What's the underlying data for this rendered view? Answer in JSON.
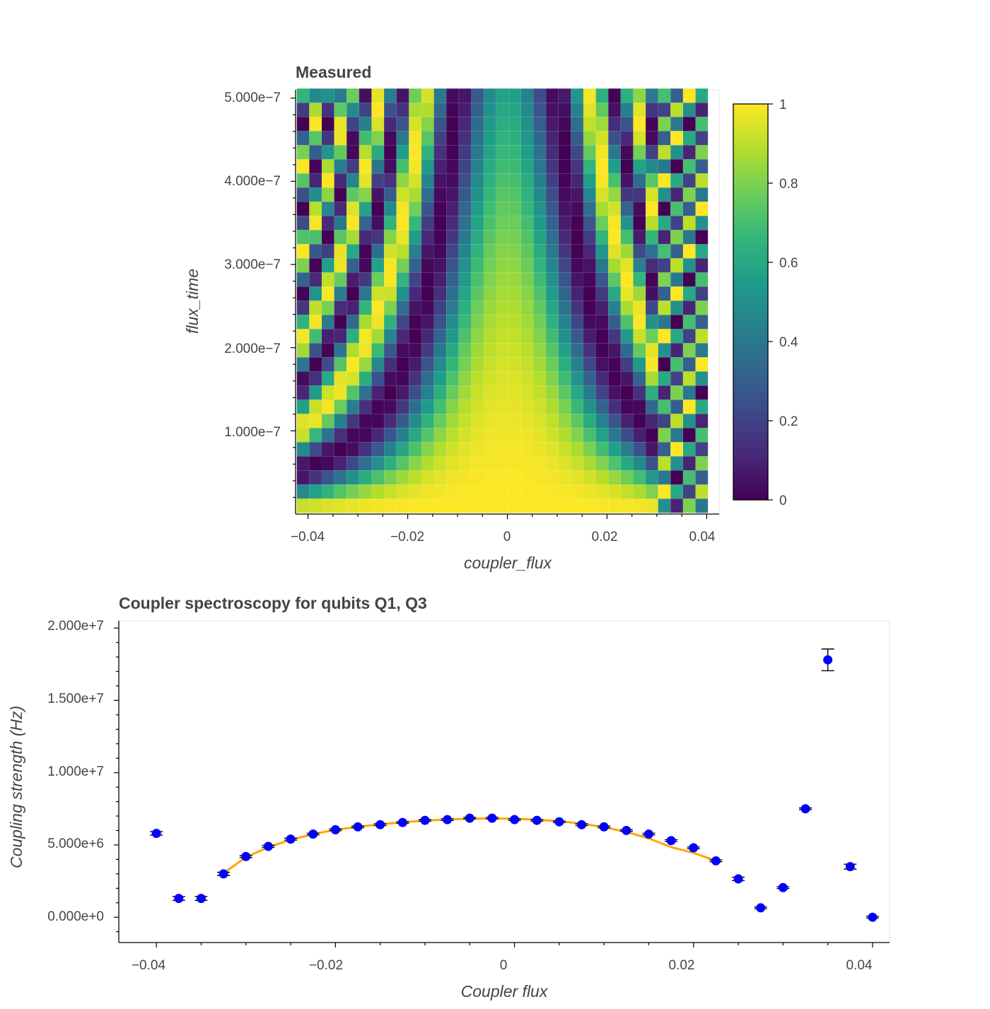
{
  "chart_data": [
    {
      "type": "heatmap",
      "title": "Measured",
      "xlabel": "coupler_flux",
      "ylabel": "flux_time",
      "x_range": [
        -0.0425,
        0.0425
      ],
      "y_range": [
        0,
        5.1e-07
      ],
      "x_ticks": [
        -0.04,
        -0.02,
        0,
        0.02,
        0.04
      ],
      "x_tick_labels": [
        "−0.04",
        "−0.02",
        "0",
        "0.02",
        "0.04"
      ],
      "y_ticks": [
        1e-07,
        2e-07,
        3e-07,
        4e-07,
        5e-07
      ],
      "y_tick_labels": [
        "1.000e−7",
        "2.000e−7",
        "3.000e−7",
        "4.000e−7",
        "5.000e−7"
      ],
      "colorbar": {
        "min": 0,
        "max": 1,
        "ticks": [
          0,
          0.2,
          0.4,
          0.6,
          0.8,
          1
        ],
        "tick_labels": [
          "0",
          "0.2",
          "0.4",
          "0.6",
          "0.8",
          "1"
        ],
        "colormap": "viridis"
      },
      "grid": {
        "n_cols": 33,
        "n_rows": 30,
        "x_start": -0.041,
        "x_step": 0.0025,
        "y_start": 1e-08,
        "y_step": 1.7e-08
      },
      "values_description": "values generated from a Rabi-chevron model; colour shows population"
    },
    {
      "type": "scatter",
      "title": "Coupler spectroscopy for qubits Q1, Q3",
      "xlabel": "Coupler flux",
      "ylabel": "Coupling strength (Hz)",
      "x_range": [
        -0.0442,
        0.0419
      ],
      "y_range": [
        -1750000,
        20500000
      ],
      "x_ticks": [
        -0.04,
        -0.02,
        0,
        0.02,
        0.04
      ],
      "x_tick_labels": [
        "−0.04",
        "−0.02",
        "0",
        "0.02",
        "0.04"
      ],
      "y_ticks": [
        0,
        5000000,
        10000000,
        15000000,
        20000000
      ],
      "y_tick_labels": [
        "0.000e+0",
        "5.000e+6",
        "1.000e+7",
        "1.500e+7",
        "2.000e+7"
      ],
      "series": [
        {
          "name": "measured",
          "color": "#0000ff",
          "x": [
            -0.04,
            -0.0375,
            -0.035,
            -0.0325,
            -0.03,
            -0.0275,
            -0.025,
            -0.0225,
            -0.02,
            -0.0175,
            -0.015,
            -0.0125,
            -0.01,
            -0.0075,
            -0.005,
            -0.0025,
            0,
            0.0025,
            0.005,
            0.0075,
            0.01,
            0.0125,
            0.015,
            0.0175,
            0.02,
            0.0225,
            0.025,
            0.0275,
            0.03,
            0.0325,
            0.035,
            0.0375,
            0.04
          ],
          "y": [
            5800000,
            1300000,
            1300000,
            3000000,
            4200000,
            4900000,
            5400000,
            5750000,
            6050000,
            6250000,
            6400000,
            6550000,
            6700000,
            6750000,
            6850000,
            6850000,
            6750000,
            6700000,
            6600000,
            6400000,
            6250000,
            6000000,
            5750000,
            5300000,
            4800000,
            3900000,
            2650000,
            650000,
            2050000,
            7500000,
            17800000,
            3500000,
            0
          ],
          "err": [
            120000,
            130000,
            130000,
            110000,
            70000,
            70000,
            70000,
            60000,
            60000,
            60000,
            60000,
            60000,
            60000,
            60000,
            60000,
            60000,
            60000,
            60000,
            60000,
            60000,
            60000,
            60000,
            60000,
            60000,
            60000,
            60000,
            120000,
            60000,
            60000,
            60000,
            750000,
            170000,
            60000
          ]
        },
        {
          "name": "fit",
          "color": "#ffa500",
          "x": [
            -0.0325,
            -0.03,
            -0.0275,
            -0.025,
            -0.0225,
            -0.02,
            -0.0175,
            -0.015,
            -0.0125,
            -0.01,
            -0.0075,
            -0.005,
            -0.0025,
            0,
            0.0025,
            0.005,
            0.0075,
            0.01,
            0.0125,
            0.015,
            0.0175,
            0.02,
            0.0225
          ],
          "y": [
            3050000,
            4150000,
            4850000,
            5350000,
            5750000,
            6050000,
            6250000,
            6430000,
            6570000,
            6680000,
            6760000,
            6810000,
            6830000,
            6810000,
            6750000,
            6640000,
            6470000,
            6230000,
            5900000,
            5450000,
            4850000,
            4450000,
            3900000
          ]
        }
      ]
    }
  ]
}
